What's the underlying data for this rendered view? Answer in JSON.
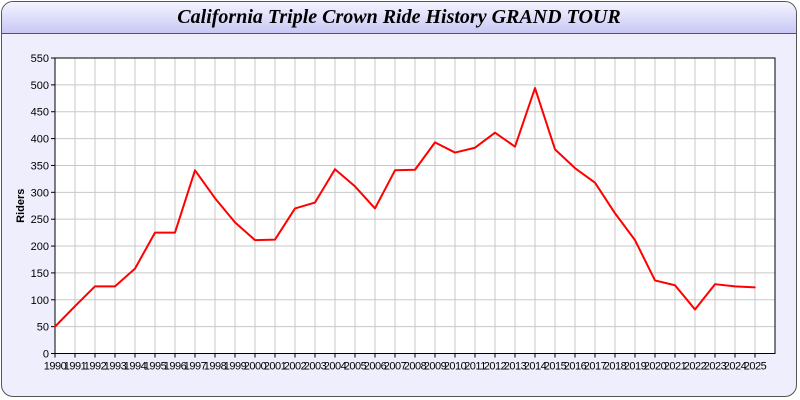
{
  "chart_data": {
    "type": "line",
    "title": "California Triple Crown Ride History GRAND TOUR",
    "xlabel": "",
    "ylabel": "Riders",
    "ylim": [
      0,
      550
    ],
    "yticks": [
      0,
      50,
      100,
      150,
      200,
      250,
      300,
      350,
      400,
      450,
      500,
      550
    ],
    "grid": true,
    "line_color": "#ff0000",
    "x": [
      1990,
      1991,
      1992,
      1993,
      1994,
      1995,
      1996,
      1997,
      1998,
      1999,
      2000,
      2001,
      2002,
      2003,
      2004,
      2005,
      2006,
      2007,
      2008,
      2009,
      2010,
      2011,
      2012,
      2013,
      2014,
      2015,
      2016,
      2017,
      2018,
      2019,
      2020,
      2021,
      2022,
      2023,
      2024,
      2025
    ],
    "values": [
      50,
      88,
      125,
      125,
      158,
      225,
      225,
      341,
      289,
      244,
      211,
      212,
      270,
      281,
      343,
      311,
      270,
      341,
      342,
      393,
      374,
      383,
      411,
      385,
      494,
      380,
      345,
      318,
      261,
      211,
      136,
      127,
      82,
      129,
      125,
      123
    ]
  }
}
